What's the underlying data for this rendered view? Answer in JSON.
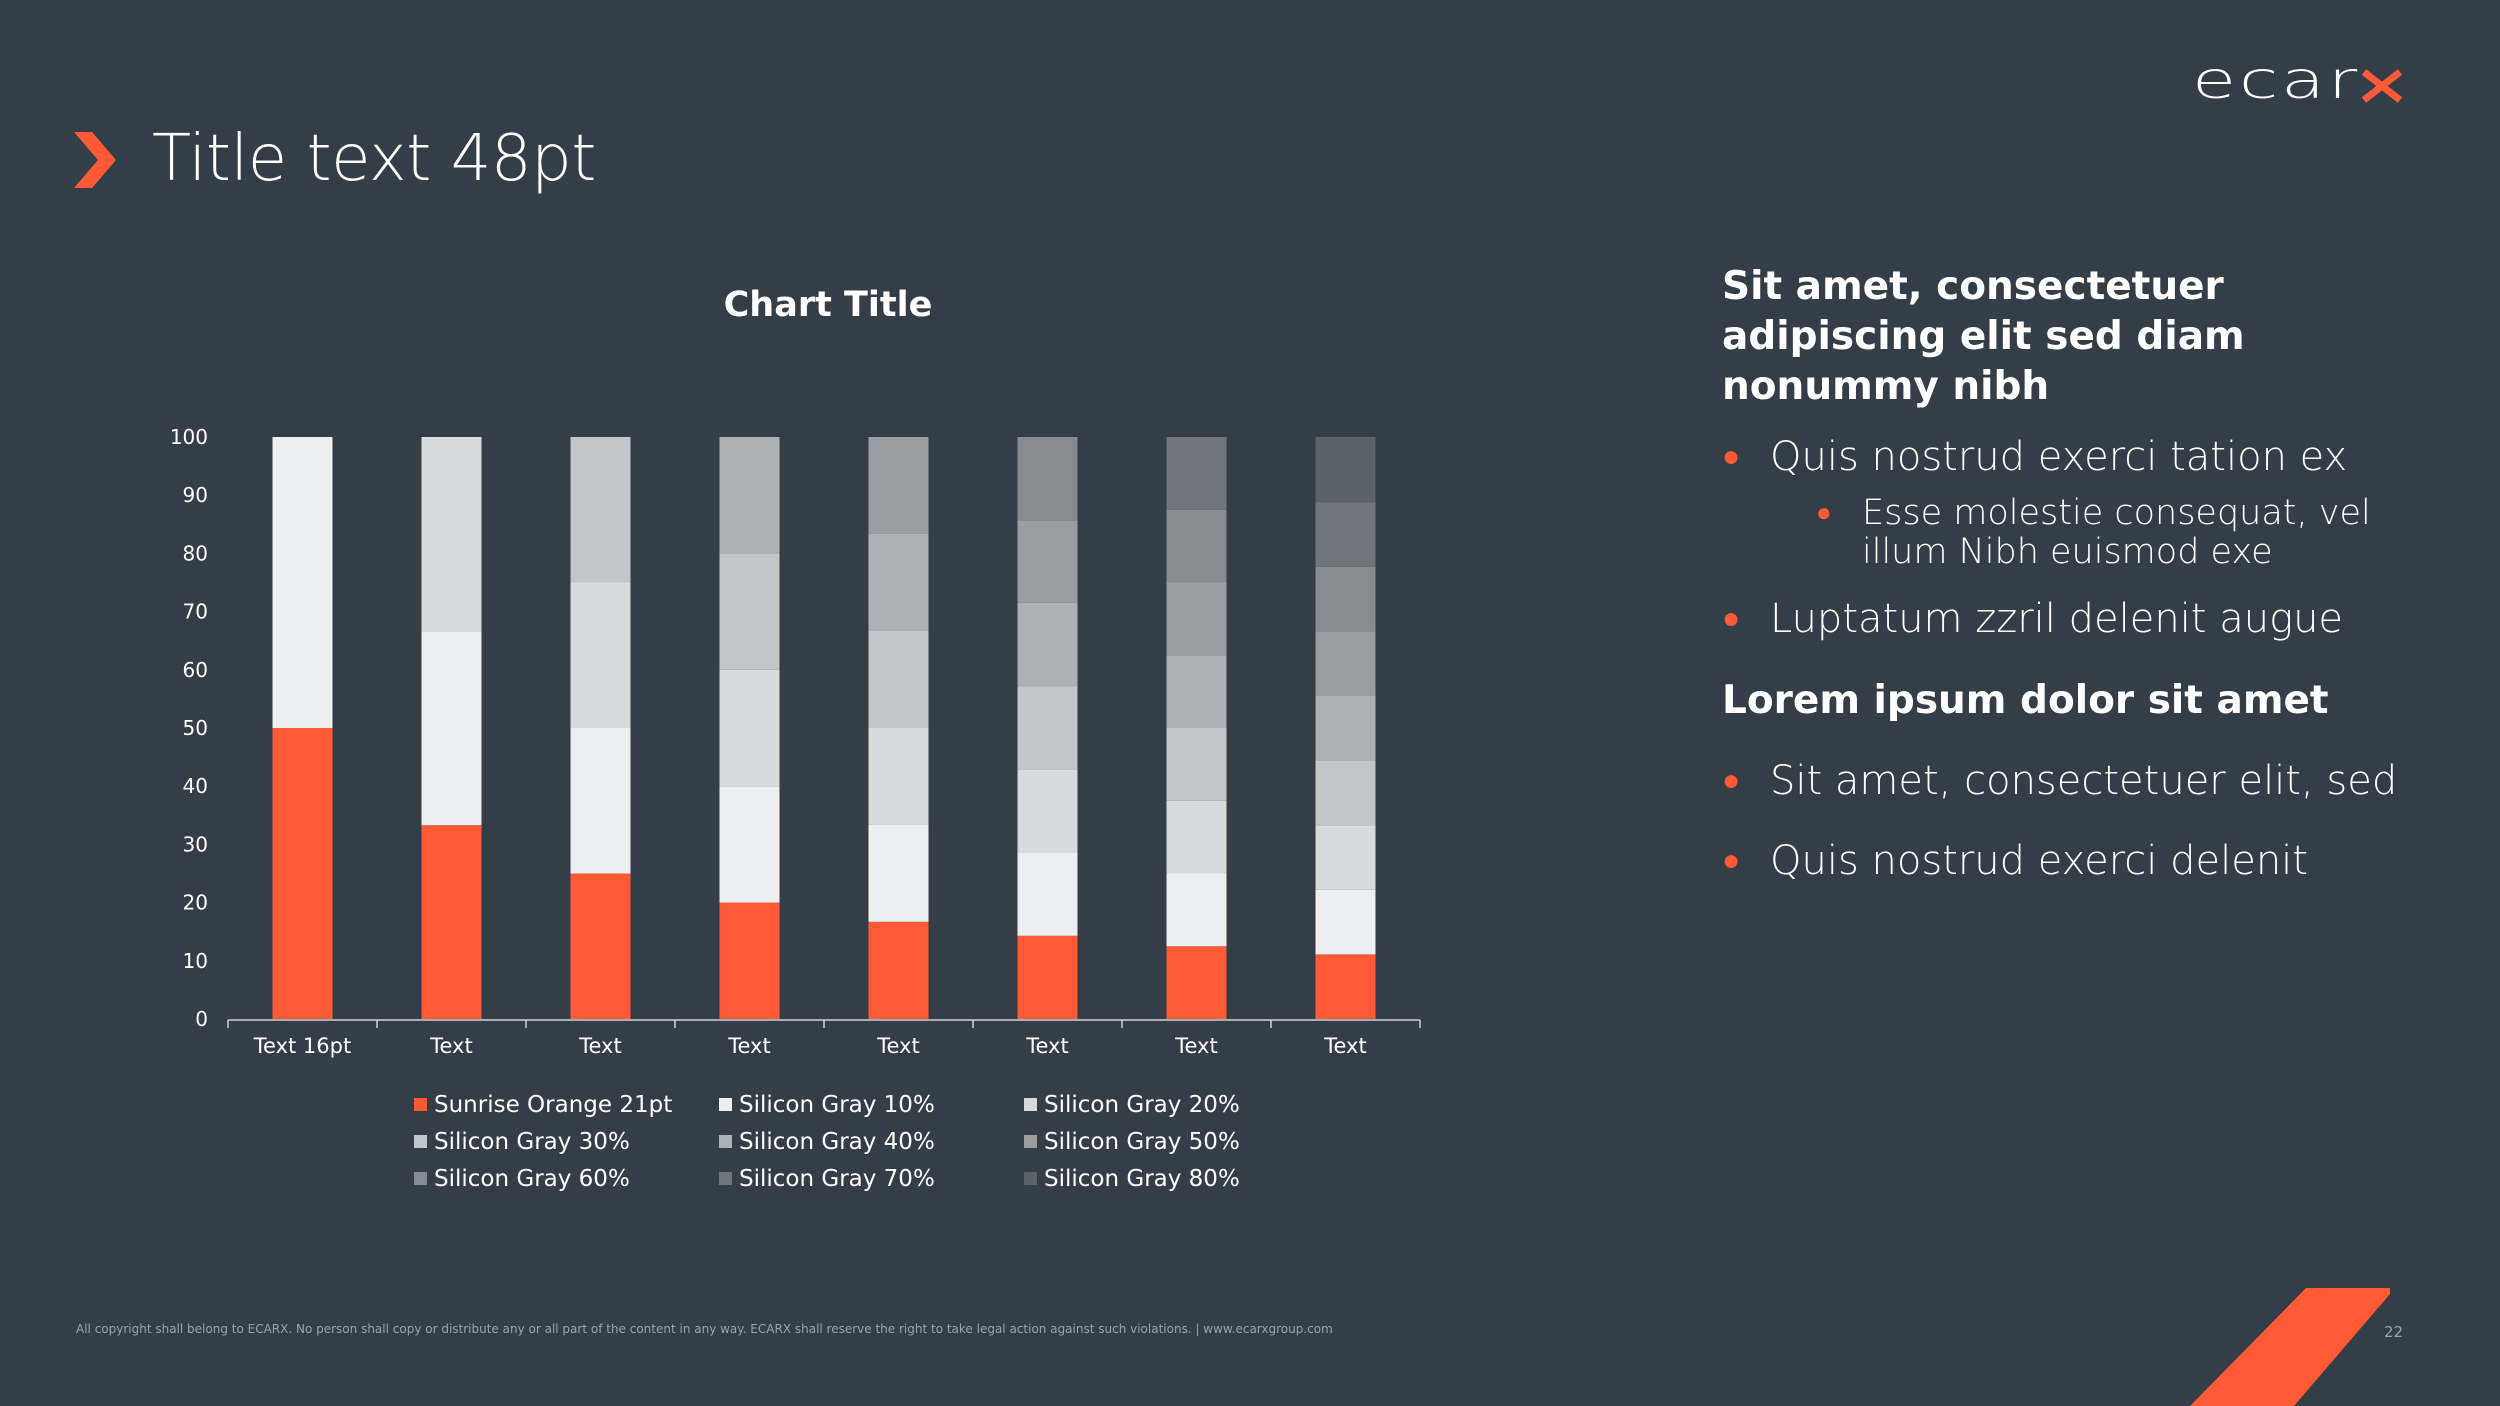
{
  "slide": {
    "title": "Title text 48pt",
    "page_number": "22",
    "copyright": "All copyright shall belong to ECARX.  No person shall copy or distribute any or all part of the content in any way.  ECARX shall reserve the right to take legal action against such violations.  | www.ecarxgroup.com",
    "logo_text": "ecarx"
  },
  "colors": {
    "background": "#333e48",
    "accent": "#ff5a35"
  },
  "right_panel": {
    "heading1": "Sit amet, consectetuer adipiscing elit sed diam nonummy nibh",
    "bullet1": "Quis nostrud exerci tation ex",
    "sub_bullet1": "Esse molestie consequat, vel illum Nibh euismod exe",
    "bullet2": "Luptatum zzril delenit augue",
    "heading2": "Lorem ipsum dolor sit amet",
    "bullet3": "Sit amet, consectetuer elit, sed",
    "bullet4": "Quis nostrud exerci delenit"
  },
  "chart_data": {
    "type": "bar",
    "stacked": true,
    "title": "Chart Title",
    "xlabel": "",
    "ylabel": "",
    "ylim": [
      0,
      100
    ],
    "yticks": [
      0,
      10,
      20,
      30,
      40,
      50,
      60,
      70,
      80,
      90,
      100
    ],
    "categories": [
      "Text 16pt",
      "Text",
      "Text",
      "Text",
      "Text",
      "Text",
      "Text",
      "Text"
    ],
    "series": [
      {
        "name": "Sunrise Orange 21pt",
        "color": "#ff5a35",
        "values": [
          50,
          33.3,
          25,
          20,
          16.7,
          14.3,
          12.5,
          11.1
        ]
      },
      {
        "name": "Silicon Gray 10%",
        "color": "#eceeef",
        "values": [
          50,
          33.3,
          25,
          20,
          16.7,
          14.3,
          12.5,
          11.1
        ]
      },
      {
        "name": "Silicon Gray 20%",
        "color": "#d7dbdc",
        "values": [
          0,
          33.4,
          25,
          20,
          16.7,
          14.3,
          12.5,
          11.1
        ]
      },
      {
        "name": "Silicon Gray 30%",
        "color": "#c2c6c9",
        "values": [
          0,
          0,
          25,
          20,
          16.7,
          14.3,
          12.5,
          11.1
        ]
      },
      {
        "name": "Silicon Gray 40%",
        "color": "#adb1b5",
        "values": [
          0,
          0,
          0,
          20,
          16.6,
          14.3,
          12.5,
          11.1
        ]
      },
      {
        "name": "Silicon Gray 50%",
        "color": "#989ea2",
        "values": [
          0,
          0,
          0,
          0,
          16.6,
          14.2,
          12.5,
          11.1
        ]
      },
      {
        "name": "Silicon Gray 60%",
        "color": "#858b90",
        "values": [
          0,
          0,
          0,
          0,
          0,
          14.3,
          12.5,
          11.1
        ]
      },
      {
        "name": "Silicon Gray 70%",
        "color": "#70767d",
        "values": [
          0,
          0,
          0,
          0,
          0,
          0,
          12.5,
          11.1
        ]
      },
      {
        "name": "Silicon Gray 80%",
        "color": "#5a626a",
        "values": [
          0,
          0,
          0,
          0,
          0,
          0,
          0,
          11.2
        ]
      }
    ],
    "legend": "bottom"
  }
}
